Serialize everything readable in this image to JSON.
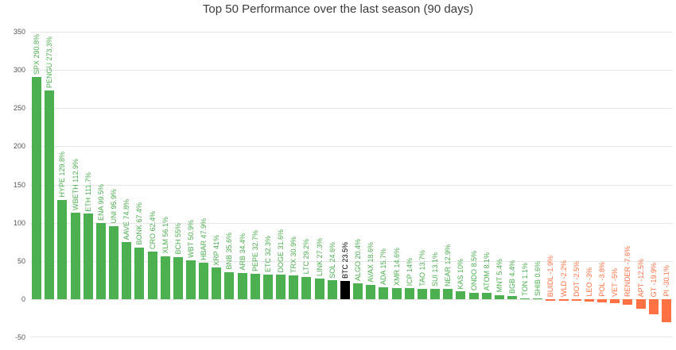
{
  "colors": {
    "positive": "#4caf50",
    "negative": "#ff7043",
    "highlight": "#000000",
    "grid": "#e6e6e6",
    "axis_text": "#555555",
    "title_text": "#3c3c3c"
  },
  "chart_data": {
    "type": "bar",
    "title": "Top 50 Performance over the last season (90 days)",
    "xlabel": "",
    "ylabel": "",
    "ylim": [
      -50,
      350
    ],
    "grid": true,
    "legend": false,
    "yticks": [
      350,
      300,
      250,
      200,
      150,
      100,
      50,
      0,
      -50
    ],
    "items": [
      {
        "label": "SPX 290.8%",
        "value": 290.8,
        "color": "positive"
      },
      {
        "label": "PENGU 273.3%",
        "value": 273.3,
        "color": "positive"
      },
      {
        "label": "HYPE 129.8%",
        "value": 129.8,
        "color": "positive"
      },
      {
        "label": "WBETH 112.9%",
        "value": 112.9,
        "color": "positive"
      },
      {
        "label": "ETH 111.7%",
        "value": 111.7,
        "color": "positive"
      },
      {
        "label": "ENA 99.5%",
        "value": 99.5,
        "color": "positive"
      },
      {
        "label": "UNI 95.9%",
        "value": 95.9,
        "color": "positive"
      },
      {
        "label": "AAVE 74.8%",
        "value": 74.8,
        "color": "positive"
      },
      {
        "label": "BONK 67.4%",
        "value": 67.4,
        "color": "positive"
      },
      {
        "label": "CRO 62.4%",
        "value": 62.4,
        "color": "positive"
      },
      {
        "label": "XLM 56.1%",
        "value": 56.1,
        "color": "positive"
      },
      {
        "label": "BCH 55%",
        "value": 55,
        "color": "positive"
      },
      {
        "label": "WBT 50.9%",
        "value": 50.9,
        "color": "positive"
      },
      {
        "label": "HBAR 47.9%",
        "value": 47.9,
        "color": "positive"
      },
      {
        "label": "XRP 41%",
        "value": 41,
        "color": "positive"
      },
      {
        "label": "BNB 35.6%",
        "value": 35.6,
        "color": "positive"
      },
      {
        "label": "ARB 34.4%",
        "value": 34.4,
        "color": "positive"
      },
      {
        "label": "PEPE 32.7%",
        "value": 32.7,
        "color": "positive"
      },
      {
        "label": "ETC 32.3%",
        "value": 32.3,
        "color": "positive"
      },
      {
        "label": "DOGE 31.6%",
        "value": 31.6,
        "color": "positive"
      },
      {
        "label": "TRX 30.9%",
        "value": 30.9,
        "color": "positive"
      },
      {
        "label": "LTC 29.2%",
        "value": 29.2,
        "color": "positive"
      },
      {
        "label": "LINK 27.3%",
        "value": 27.3,
        "color": "positive"
      },
      {
        "label": "SOL 24.6%",
        "value": 24.6,
        "color": "positive"
      },
      {
        "label": "BTC 23.5%",
        "value": 23.5,
        "color": "highlight"
      },
      {
        "label": "ALGO 20.4%",
        "value": 20.4,
        "color": "positive"
      },
      {
        "label": "AVAX 18.6%",
        "value": 18.6,
        "color": "positive"
      },
      {
        "label": "ADA 15.7%",
        "value": 15.7,
        "color": "positive"
      },
      {
        "label": "XMR 14.6%",
        "value": 14.6,
        "color": "positive"
      },
      {
        "label": "ICP 14%",
        "value": 14,
        "color": "positive"
      },
      {
        "label": "TAO 13.7%",
        "value": 13.7,
        "color": "positive"
      },
      {
        "label": "SUI 13.1%",
        "value": 13.1,
        "color": "positive"
      },
      {
        "label": "NEAR 12.9%",
        "value": 12.9,
        "color": "positive"
      },
      {
        "label": "KAS 10%",
        "value": 10,
        "color": "positive"
      },
      {
        "label": "ONDO 8.5%",
        "value": 8.5,
        "color": "positive"
      },
      {
        "label": "ATOM 8.1%",
        "value": 8.1,
        "color": "positive"
      },
      {
        "label": "MNT 5.4%",
        "value": 5.4,
        "color": "positive"
      },
      {
        "label": "BGB 4.4%",
        "value": 4.4,
        "color": "positive"
      },
      {
        "label": "TON 1.1%",
        "value": 1.1,
        "color": "positive"
      },
      {
        "label": "SHIB 0.6%",
        "value": 0.6,
        "color": "positive"
      },
      {
        "label": "BUIDL -1.9%",
        "value": -1.9,
        "color": "negative"
      },
      {
        "label": "WLD -2.2%",
        "value": -2.2,
        "color": "negative"
      },
      {
        "label": "DOT -2.5%",
        "value": -2.5,
        "color": "negative"
      },
      {
        "label": "LEO -3%",
        "value": -3,
        "color": "negative"
      },
      {
        "label": "POL -3.8%",
        "value": -3.8,
        "color": "negative"
      },
      {
        "label": "VET -5%",
        "value": -5,
        "color": "negative"
      },
      {
        "label": "RENDER -7.6%",
        "value": -7.6,
        "color": "negative"
      },
      {
        "label": "APT -12.5%",
        "value": -12.5,
        "color": "negative"
      },
      {
        "label": "GT -19.9%",
        "value": -19.9,
        "color": "negative"
      },
      {
        "label": "PI -30.1%",
        "value": -30.1,
        "color": "negative"
      }
    ]
  }
}
